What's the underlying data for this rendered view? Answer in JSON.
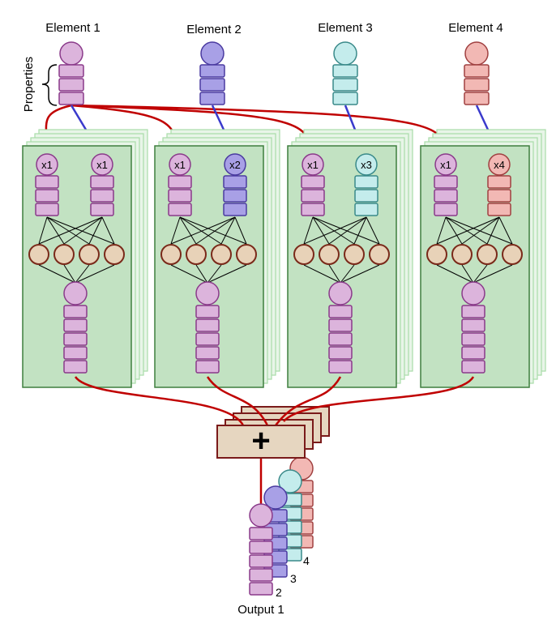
{
  "elements": [
    {
      "label": "Element 1",
      "color": "#dcb4dc",
      "stroke": "#8a3a8a",
      "weight_label": "x1"
    },
    {
      "label": "Element 2",
      "color": "#a8a0e6",
      "stroke": "#4a3aa0",
      "weight_label": "x2"
    },
    {
      "label": "Element 3",
      "color": "#c4ecec",
      "stroke": "#3a8a8a",
      "weight_label": "x3"
    },
    {
      "label": "Element 4",
      "color": "#f2b8b4",
      "stroke": "#a04040",
      "weight_label": "x4"
    }
  ],
  "properties_label": "Properties",
  "shared_weight_label": "x1",
  "sum_symbol": "+",
  "output_label": "Output 1",
  "output_stack_numbers": [
    "2",
    "3",
    "4"
  ],
  "colors": {
    "edge_red": "#c00000",
    "edge_blue": "#3a3acc",
    "panel_fill": "#c2e2c2",
    "panel_stroke": "#3e7e3e",
    "neuron_fill": "#e8d2b8",
    "neuron_stroke": "#7a2a1a",
    "sum_fill": "#e6d6c0",
    "sum_stroke": "#7a1a1a"
  }
}
